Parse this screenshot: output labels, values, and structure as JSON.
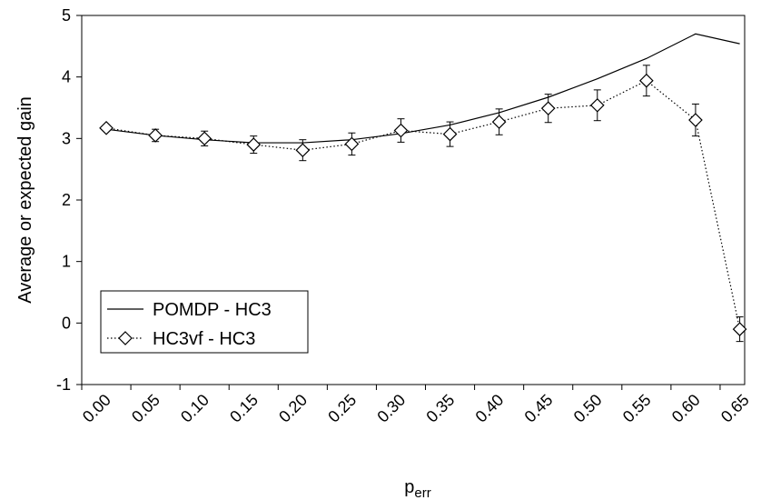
{
  "chart_data": {
    "type": "line",
    "x_tick_labels": [
      "0.00",
      "0.05",
      "0.10",
      "0.15",
      "0.20",
      "0.25",
      "0.30",
      "0.35",
      "0.40",
      "0.45",
      "0.50",
      "0.55",
      "0.60",
      "0.65"
    ],
    "y_tick_labels": [
      "-1",
      "0",
      "1",
      "2",
      "3",
      "4",
      "5"
    ],
    "ylim": [
      -1,
      5
    ],
    "xlim": [
      0,
      0.675
    ],
    "xlabel_main": "p",
    "xlabel_sub": "err",
    "ylabel": "Average or expected gain",
    "legend_position": "bottom-left",
    "grid": false,
    "series": [
      {
        "name": "POMDP - HC3",
        "style": "solid",
        "x": [
          0.025,
          0.075,
          0.125,
          0.175,
          0.225,
          0.275,
          0.325,
          0.375,
          0.425,
          0.475,
          0.525,
          0.575,
          0.625,
          0.67
        ],
        "y": [
          3.15,
          3.05,
          2.98,
          2.93,
          2.93,
          2.98,
          3.08,
          3.22,
          3.42,
          3.67,
          3.97,
          4.3,
          4.7,
          4.54
        ]
      },
      {
        "name": "HC3vf - HC3",
        "style": "dotted",
        "marker": "diamond",
        "x": [
          0.025,
          0.075,
          0.125,
          0.175,
          0.225,
          0.275,
          0.325,
          0.375,
          0.425,
          0.475,
          0.525,
          0.575,
          0.625,
          0.67
        ],
        "y": [
          3.17,
          3.05,
          3.0,
          2.9,
          2.81,
          2.91,
          3.13,
          3.07,
          3.27,
          3.49,
          3.54,
          3.94,
          3.3,
          -0.1
        ],
        "err": [
          0.03,
          0.1,
          0.12,
          0.14,
          0.17,
          0.18,
          0.19,
          0.2,
          0.21,
          0.23,
          0.25,
          0.25,
          0.26,
          0.2
        ]
      }
    ]
  }
}
